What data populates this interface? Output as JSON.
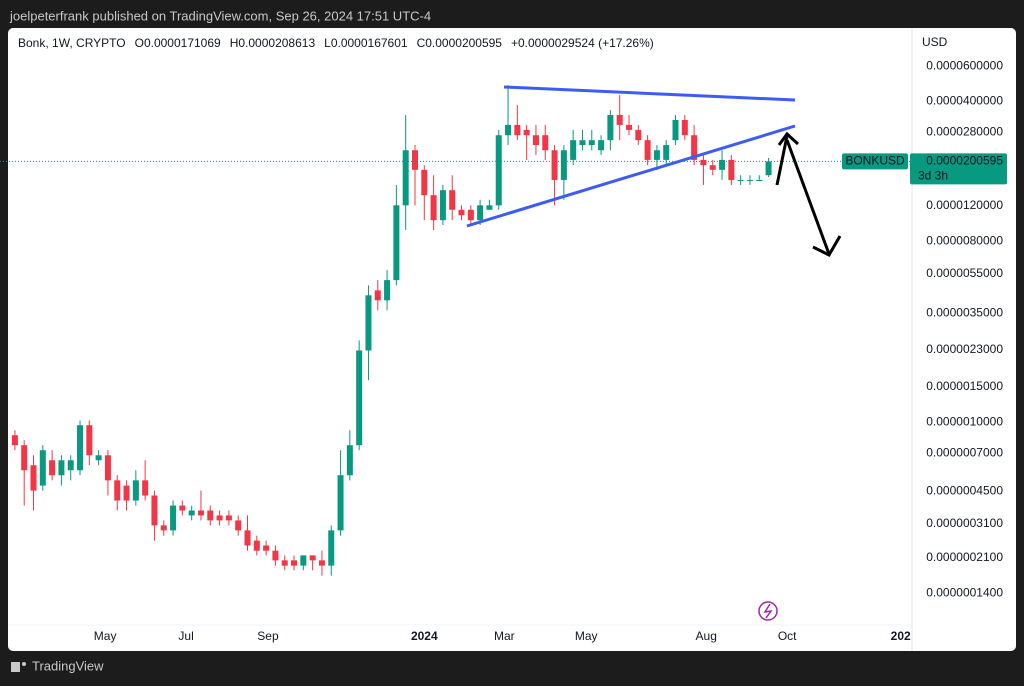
{
  "header": {
    "publisher": "joelpeterfrank published on TradingView.com, Sep 26, 2024 17:51 UTC-4"
  },
  "footer": {
    "brand": "TradingView"
  },
  "chart_data": {
    "type": "candlestick",
    "symbol_line": "Bonk, 1W, CRYPTO",
    "ohlc_keys": [
      "O",
      "H",
      "L",
      "C"
    ],
    "change": "+0.0000029524 (+17.26%)",
    "currency": "USD",
    "symbol": "BONKUSD",
    "countdown": "3d 3h",
    "up_color": "#089981",
    "down_color": "#f23645",
    "log_scale": true,
    "ylim": [
      9.7e-08,
      9.3e-05
    ],
    "yticks": [
      {
        "value": 6e-05,
        "label": "0.0000600000"
      },
      {
        "value": 4e-05,
        "label": "0.0000400000"
      },
      {
        "value": 2.8e-05,
        "label": "0.0000280000"
      },
      {
        "value": 1.2e-05,
        "label": "0.0000120000"
      },
      {
        "value": 8e-06,
        "label": "0.0000080000"
      },
      {
        "value": 5.5e-06,
        "label": "0.0000055000"
      },
      {
        "value": 3.5e-06,
        "label": "0.0000035000"
      },
      {
        "value": 2.3e-06,
        "label": "0.0000023000"
      },
      {
        "value": 1.5e-06,
        "label": "0.0000015000"
      },
      {
        "value": 1e-06,
        "label": "0.0000010000"
      },
      {
        "value": 7e-07,
        "label": "0.0000007000"
      },
      {
        "value": 4.5e-07,
        "label": "0.0000004500"
      },
      {
        "value": 3.1e-07,
        "label": "0.0000003100"
      },
      {
        "value": 2.1e-07,
        "label": "0.0000002100"
      },
      {
        "value": 1.4e-07,
        "label": "0.0000001400"
      }
    ],
    "xlim": [
      -1.6,
      96.2
    ],
    "xticks": [
      {
        "value": 9.7,
        "label": "May"
      },
      {
        "value": 18.4,
        "label": "Jul"
      },
      {
        "value": 27.2,
        "label": "Sep"
      },
      {
        "value": 44,
        "label": "2024"
      },
      {
        "value": 52.6,
        "label": "Mar"
      },
      {
        "value": 61.4,
        "label": "May"
      },
      {
        "value": 74.3,
        "label": "Aug"
      },
      {
        "value": 83,
        "label": "Oct"
      },
      {
        "value": 95.2,
        "label": "202"
      }
    ],
    "open": [
      8.6e-07,
      7.67e-07,
      6.09e-07,
      4.82e-07,
      6.45e-07,
      5.43e-07,
      5.75e-07,
      5.75e-07,
      9.65e-07,
      6.45e-07,
      6.83e-07,
      5.12e-07,
      4.82e-07,
      4.06e-07,
      5.12e-07,
      4.3e-07,
      3.05e-07,
      2.88e-07,
      3.83e-07,
      3.42e-07,
      3.62e-07,
      3.62e-07,
      3.42e-07,
      3.42e-07,
      3.23e-07,
      2.88e-07,
      2.56e-07,
      2.42e-07,
      2.28e-07,
      2.04e-07,
      2.04e-07,
      1.92e-07,
      2.16e-07,
      2.04e-07,
      1.92e-07,
      2.88e-07,
      5.43e-07,
      7.67e-07,
      2.28e-06,
      4.55e-06,
      4.06e-06,
      5.12e-06,
      1.21e-05,
      2.28e-05,
      1.82e-05,
      1.36e-05,
      1.02e-05,
      1.44e-05,
      1.15e-05,
      1.15e-05,
      1.02e-05,
      1.15e-05,
      1.21e-05,
      2.71e-05,
      3.05e-05,
      2.88e-05,
      2.71e-05,
      2.71e-05,
      2.28e-05,
      1.62e-05,
      2.04e-05,
      2.42e-05,
      2.42e-05,
      2.28e-05,
      2.56e-05,
      3.42e-05,
      3.05e-05,
      2.88e-05,
      2.56e-05,
      2.04e-05,
      2.04e-05,
      2.56e-05,
      3.23e-05,
      2.71e-05,
      2.04e-05,
      1.92e-05,
      1.82e-05,
      2.04e-05,
      1.62e-05,
      1.62e-05,
      1.62e-05,
      1.71069e-05
    ],
    "high": [
      9.11e-07,
      8.12e-07,
      6.83e-07,
      7.67e-07,
      7.24e-07,
      6.83e-07,
      6.83e-07,
      1.02e-06,
      1.02e-06,
      7.24e-07,
      7.24e-07,
      5.43e-07,
      5.12e-07,
      5.75e-07,
      6.45e-07,
      4.55e-07,
      3.23e-07,
      4.06e-07,
      4.06e-07,
      3.83e-07,
      4.55e-07,
      3.83e-07,
      3.62e-07,
      3.62e-07,
      3.42e-07,
      3.42e-07,
      2.71e-07,
      2.56e-07,
      2.42e-07,
      2.16e-07,
      2.16e-07,
      2.16e-07,
      2.16e-07,
      2.28e-07,
      3.05e-07,
      7.24e-07,
      9.11e-07,
      2.56e-06,
      4.82e-06,
      5.12e-06,
      5.75e-06,
      1.53e-05,
      3.42e-05,
      2.42e-05,
      1.92e-05,
      1.71e-05,
      1.53e-05,
      1.71e-05,
      1.21e-05,
      1.21e-05,
      1.29e-05,
      1.29e-05,
      2.88e-05,
      4.82e-05,
      3.83e-05,
      3.05e-05,
      3.05e-05,
      3.05e-05,
      2.42e-05,
      2.42e-05,
      2.88e-05,
      2.88e-05,
      2.88e-05,
      2.71e-05,
      3.62e-05,
      4.3e-05,
      3.42e-05,
      3.05e-05,
      2.71e-05,
      2.42e-05,
      2.56e-05,
      3.42e-05,
      3.42e-05,
      3.05e-05,
      2.16e-05,
      2.04e-05,
      2.28e-05,
      2.16e-05,
      1.71e-05,
      1.71e-05,
      1.71e-05,
      2.08613e-05
    ],
    "low": [
      7.24e-07,
      3.83e-07,
      3.62e-07,
      4.55e-07,
      5.12e-07,
      4.82e-07,
      5.12e-07,
      5.43e-07,
      6.09e-07,
      6.09e-07,
      4.3e-07,
      3.62e-07,
      3.62e-07,
      3.83e-07,
      4.06e-07,
      2.56e-07,
      2.71e-07,
      2.71e-07,
      3.42e-07,
      3.23e-07,
      3.23e-07,
      3.05e-07,
      3.05e-07,
      3.05e-07,
      2.71e-07,
      2.28e-07,
      2.16e-07,
      2.16e-07,
      1.92e-07,
      1.82e-07,
      1.82e-07,
      1.82e-07,
      1.82e-07,
      1.71e-07,
      1.71e-07,
      2.71e-07,
      5.12e-07,
      7.24e-07,
      1.62e-06,
      3.62e-06,
      3.62e-06,
      4.82e-06,
      9.11e-06,
      1.21e-05,
      1.02e-05,
      9.11e-06,
      9.65e-06,
      1.02e-05,
      1.02e-05,
      9.65e-06,
      9.65e-06,
      1.15e-05,
      1.15e-05,
      2.42e-05,
      2.56e-05,
      2.04e-05,
      2.16e-05,
      2.04e-05,
      1.21e-05,
      1.29e-05,
      1.92e-05,
      2.28e-05,
      2.28e-05,
      2.16e-05,
      2.28e-05,
      2.56e-05,
      2.71e-05,
      2.42e-05,
      1.92e-05,
      1.82e-05,
      1.92e-05,
      2.42e-05,
      2.56e-05,
      1.92e-05,
      1.53e-05,
      1.71e-05,
      1.62e-05,
      1.53e-05,
      1.53e-05,
      1.53e-05,
      1.62e-05,
      1.67601e-05
    ],
    "close": [
      7.67e-07,
      5.75e-07,
      4.55e-07,
      7.24e-07,
      5.43e-07,
      6.45e-07,
      6.45e-07,
      9.65e-07,
      6.83e-07,
      6.83e-07,
      5.12e-07,
      4.06e-07,
      4.06e-07,
      5.12e-07,
      4.3e-07,
      3.05e-07,
      2.88e-07,
      3.83e-07,
      3.62e-07,
      3.62e-07,
      3.42e-07,
      3.23e-07,
      3.23e-07,
      3.23e-07,
      2.88e-07,
      2.42e-07,
      2.28e-07,
      2.28e-07,
      2.04e-07,
      1.92e-07,
      1.92e-07,
      2.16e-07,
      2.04e-07,
      1.92e-07,
      2.88e-07,
      5.43e-07,
      7.67e-07,
      2.28e-06,
      4.3e-06,
      4.06e-06,
      5.12e-06,
      1.21e-05,
      2.28e-05,
      1.82e-05,
      1.36e-05,
      1.02e-05,
      1.44e-05,
      1.15e-05,
      1.08e-05,
      1.02e-05,
      1.21e-05,
      1.21e-05,
      2.71e-05,
      3.05e-05,
      2.71e-05,
      2.71e-05,
      2.42e-05,
      2.28e-05,
      1.62e-05,
      2.28e-05,
      2.56e-05,
      2.56e-05,
      2.56e-05,
      2.56e-05,
      3.42e-05,
      3.05e-05,
      2.88e-05,
      2.56e-05,
      2.04e-05,
      2.28e-05,
      2.42e-05,
      3.23e-05,
      2.71e-05,
      2.04e-05,
      1.92e-05,
      1.82e-05,
      2.04e-05,
      1.62e-05,
      1.62e-05,
      1.62e-05,
      1.62e-05,
      2.00595e-05
    ]
  }
}
